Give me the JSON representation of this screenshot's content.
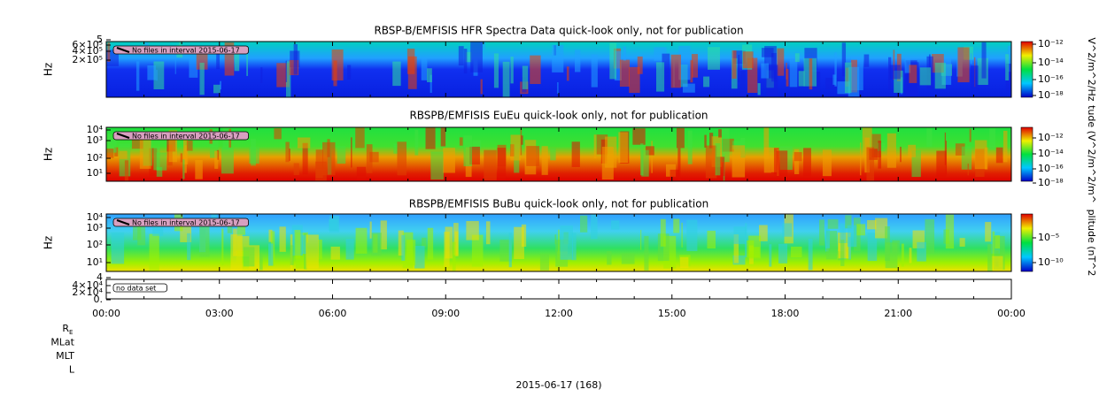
{
  "panels": [
    {
      "title": "RBSP-B/EMFISIS  HFR Spectra Data quick-look only, not for publication",
      "y_label": "Hz",
      "y_ticks": [
        "5",
        "6×10⁵",
        "4×10⁵",
        "2×10⁵"
      ],
      "colorbar_label": "V^2/m^2/Hz",
      "colorbar_ticks": [
        "10⁻¹²",
        "10⁻¹⁴",
        "10⁻¹⁶",
        "10⁻¹⁸"
      ],
      "note": "No files in interval 2015-06-17"
    },
    {
      "title": "RBSPB/EMFISIS  EuEu quick-look only, not for publication",
      "y_label": "Hz",
      "y_ticks": [
        "10⁴",
        "10³",
        "10²",
        "10¹"
      ],
      "colorbar_label": "tude (V^2/m^2/m^",
      "colorbar_ticks": [
        "10⁻¹²",
        "10⁻¹⁴",
        "10⁻¹⁶",
        "10⁻¹⁸"
      ],
      "note": "No files in interval 2015-06-17"
    },
    {
      "title": "RBSPB/EMFISIS  BuBu quick-look only, not for publication",
      "y_label": "Hz",
      "y_ticks": [
        "10⁴",
        "10³",
        "10²",
        "10¹"
      ],
      "colorbar_label": "plitude (nT^2",
      "colorbar_ticks": [
        "10⁻⁵",
        "10⁻¹⁰"
      ],
      "note": "No files in interval 2015-06-17"
    },
    {
      "y_ticks": [
        "4",
        "4×10⁴",
        "2×10⁴",
        "0."
      ],
      "note": "no data set"
    }
  ],
  "x_ticks": [
    "00:00",
    "03:00",
    "06:00",
    "09:00",
    "12:00",
    "15:00",
    "18:00",
    "21:00",
    "00:00"
  ],
  "ephemeris": [
    {
      "text": "R",
      "sub": "E"
    },
    {
      "text": "MLat"
    },
    {
      "text": "MLT"
    },
    {
      "text": "L"
    }
  ],
  "date_label": "2015-06-17 (168)"
}
